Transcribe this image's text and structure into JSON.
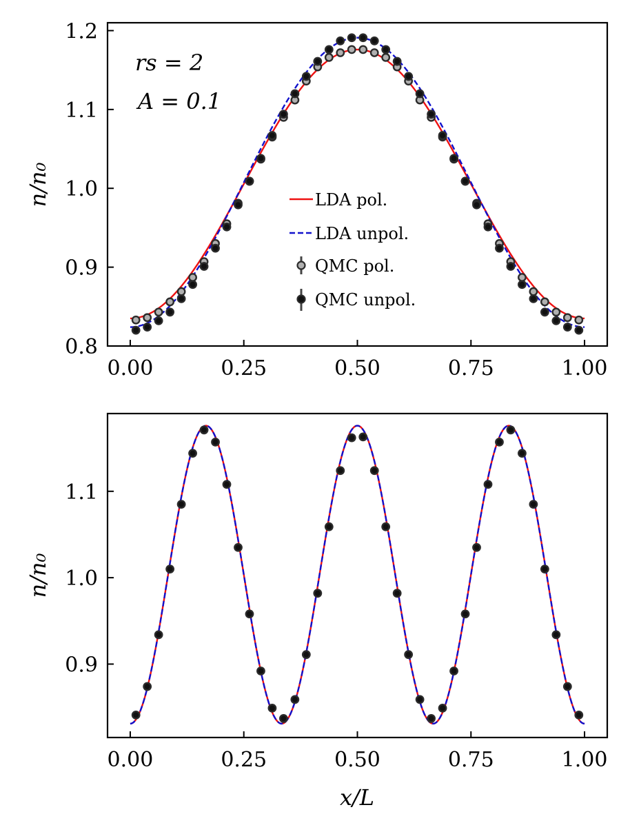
{
  "colors": {
    "lda_pol": "#ee1111",
    "lda_unpol": "#1111cc",
    "qmc_pol_face": "#b0b0b0",
    "qmc_edge": "#2b2b2b",
    "qmc_unpol_face": "#111111"
  },
  "chart_data": [
    {
      "type": "line",
      "panel": "top",
      "ylabel": "n/n₀",
      "xlabel": "",
      "xlim": [
        -0.05,
        1.05
      ],
      "ylim": [
        0.8,
        1.21
      ],
      "xticks": [
        "0.00",
        "0.25",
        "0.50",
        "0.75",
        "1.00"
      ],
      "yticks": [
        "0.8",
        "0.9",
        "1.0",
        "1.1",
        "1.2"
      ],
      "annotations": [
        "rs = 2",
        "A = 0.1"
      ],
      "legend": [
        "LDA pol.",
        "LDA unpol.",
        "QMC pol.",
        "QMC unpol."
      ],
      "legend_position": "center",
      "series": [
        {
          "name": "LDA pol.",
          "style": "solid",
          "model": {
            "mean": 1.0055,
            "amplitude": 0.1705,
            "periods": 1
          }
        },
        {
          "name": "LDA unpol.",
          "style": "dashed",
          "model": {
            "mean": 1.0075,
            "amplitude": 0.1835,
            "periods": 1
          }
        },
        {
          "name": "QMC pol.",
          "style": "markers-open",
          "x": [
            0.0125,
            0.0375,
            0.0625,
            0.0875,
            0.1125,
            0.1375,
            0.1625,
            0.1875,
            0.2125,
            0.2375,
            0.2625,
            0.2875,
            0.3125,
            0.3375,
            0.3625,
            0.3875,
            0.4125,
            0.4375,
            0.4625,
            0.4875,
            0.5125,
            0.5375,
            0.5625,
            0.5875,
            0.6125,
            0.6375,
            0.6625,
            0.6875,
            0.7125,
            0.7375,
            0.7625,
            0.7875,
            0.8125,
            0.8375,
            0.8625,
            0.8875,
            0.9125,
            0.9375,
            0.9625,
            0.9875
          ],
          "y": [
            0.833,
            0.836,
            0.843,
            0.856,
            0.869,
            0.887,
            0.907,
            0.93,
            0.955,
            0.981,
            1.009,
            1.037,
            1.065,
            1.09,
            1.112,
            1.136,
            1.154,
            1.166,
            1.172,
            1.176,
            1.176,
            1.172,
            1.166,
            1.154,
            1.136,
            1.112,
            1.09,
            1.065,
            1.037,
            1.009,
            0.981,
            0.955,
            0.93,
            0.907,
            0.887,
            0.869,
            0.856,
            0.843,
            0.836,
            0.833
          ]
        },
        {
          "name": "QMC unpol.",
          "style": "markers-filled",
          "x": [
            0.0125,
            0.0375,
            0.0625,
            0.0875,
            0.1125,
            0.1375,
            0.1625,
            0.1875,
            0.2125,
            0.2375,
            0.2625,
            0.2875,
            0.3125,
            0.3375,
            0.3625,
            0.3875,
            0.4125,
            0.4375,
            0.4625,
            0.4875,
            0.5125,
            0.5375,
            0.5625,
            0.5875,
            0.6125,
            0.6375,
            0.6625,
            0.6875,
            0.7125,
            0.7375,
            0.7625,
            0.7875,
            0.8125,
            0.8375,
            0.8625,
            0.8875,
            0.9125,
            0.9375,
            0.9625,
            0.9875
          ],
          "y": [
            0.82,
            0.824,
            0.832,
            0.843,
            0.86,
            0.878,
            0.901,
            0.924,
            0.951,
            0.979,
            1.009,
            1.038,
            1.067,
            1.094,
            1.12,
            1.142,
            1.161,
            1.176,
            1.187,
            1.191,
            1.191,
            1.187,
            1.176,
            1.161,
            1.142,
            1.12,
            1.094,
            1.067,
            1.038,
            1.009,
            0.979,
            0.951,
            0.924,
            0.901,
            0.878,
            0.86,
            0.843,
            0.832,
            0.824,
            0.82
          ]
        }
      ]
    },
    {
      "type": "line",
      "panel": "bottom",
      "ylabel": "n/n₀",
      "xlabel": "x/L",
      "xlim": [
        -0.05,
        1.05
      ],
      "ylim": [
        0.815,
        1.19
      ],
      "xticks": [
        "0.00",
        "0.25",
        "0.50",
        "0.75",
        "1.00"
      ],
      "yticks": [
        "0.9",
        "1.0",
        "1.1"
      ],
      "series": [
        {
          "name": "LDA pol.",
          "style": "solid",
          "model": {
            "mean": 1.0035,
            "amplitude": 0.1725,
            "periods": 3
          }
        },
        {
          "name": "LDA unpol.",
          "style": "dashed",
          "model": {
            "mean": 1.0035,
            "amplitude": 0.1725,
            "periods": 3
          }
        },
        {
          "name": "QMC unpol.",
          "style": "markers-filled",
          "x": [
            0.0125,
            0.0375,
            0.0625,
            0.0875,
            0.1125,
            0.1375,
            0.1625,
            0.1875,
            0.2125,
            0.2375,
            0.2625,
            0.2875,
            0.3125,
            0.3375,
            0.3625,
            0.3875,
            0.4125,
            0.4375,
            0.4625,
            0.4875,
            0.5125,
            0.5375,
            0.5625,
            0.5875,
            0.6125,
            0.6375,
            0.6625,
            0.6875,
            0.7125,
            0.7375,
            0.7625,
            0.7875,
            0.8125,
            0.8375,
            0.8625,
            0.8875,
            0.9125,
            0.9375,
            0.9625,
            0.9875
          ],
          "y": [
            0.841,
            0.874,
            0.934,
            1.01,
            1.085,
            1.144,
            1.171,
            1.157,
            1.108,
            1.035,
            0.958,
            0.892,
            0.849,
            0.837,
            0.859,
            0.911,
            0.982,
            1.059,
            1.124,
            1.162,
            1.163,
            1.124,
            1.059,
            0.982,
            0.911,
            0.859,
            0.837,
            0.849,
            0.892,
            0.958,
            1.035,
            1.108,
            1.157,
            1.171,
            1.144,
            1.085,
            1.01,
            0.934,
            0.874,
            0.841
          ]
        }
      ]
    }
  ]
}
